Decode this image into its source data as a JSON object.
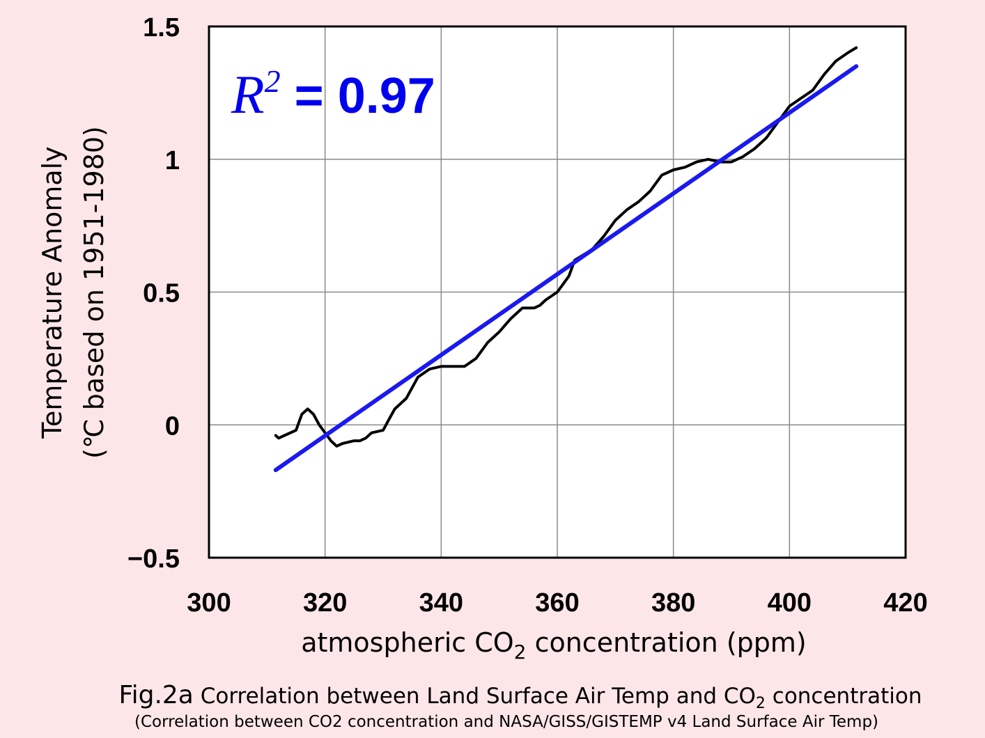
{
  "chart_data": {
    "type": "line",
    "xlabel_prefix": "atmospheric CO",
    "xlabel_sub": "2",
    "xlabel_suffix": " concentration (ppm)",
    "ylabel_line1": "Temperature Anomaly",
    "ylabel_line2": "(℃  based on 1951-1980)",
    "xlim": [
      300,
      420
    ],
    "ylim": [
      -0.5,
      1.5
    ],
    "xticks": [
      300,
      320,
      340,
      360,
      380,
      400,
      420
    ],
    "yticks": [
      -0.5,
      0,
      0.5,
      1,
      1.5
    ],
    "ytick_labels": [
      "−0.5",
      "0",
      "0.5",
      "1",
      "1.5"
    ],
    "grid": true,
    "annotation": {
      "r2_symbol": "R",
      "r2_exponent": "2",
      "r2_value": " = 0.97"
    },
    "series": [
      {
        "color": "#000000",
        "style": "line",
        "points": [
          [
            311.5,
            -0.04
          ],
          [
            312,
            -0.05
          ],
          [
            313,
            -0.04
          ],
          [
            315,
            -0.02
          ],
          [
            316,
            0.04
          ],
          [
            317,
            0.06
          ],
          [
            318,
            0.04
          ],
          [
            319,
            0.0
          ],
          [
            320,
            -0.03
          ],
          [
            321,
            -0.06
          ],
          [
            322,
            -0.08
          ],
          [
            323,
            -0.07
          ],
          [
            325,
            -0.06
          ],
          [
            326,
            -0.06
          ],
          [
            327,
            -0.05
          ],
          [
            328,
            -0.03
          ],
          [
            330,
            -0.02
          ],
          [
            331,
            0.02
          ],
          [
            332,
            0.06
          ],
          [
            334,
            0.1
          ],
          [
            336,
            0.18
          ],
          [
            338,
            0.21
          ],
          [
            340,
            0.22
          ],
          [
            342,
            0.22
          ],
          [
            344,
            0.22
          ],
          [
            346,
            0.25
          ],
          [
            348,
            0.31
          ],
          [
            350,
            0.35
          ],
          [
            352,
            0.4
          ],
          [
            354,
            0.44
          ],
          [
            356,
            0.44
          ],
          [
            357,
            0.45
          ],
          [
            358,
            0.47
          ],
          [
            360,
            0.5
          ],
          [
            362,
            0.56
          ],
          [
            363,
            0.62
          ],
          [
            366,
            0.66
          ],
          [
            368,
            0.71
          ],
          [
            370,
            0.77
          ],
          [
            372,
            0.81
          ],
          [
            374,
            0.84
          ],
          [
            376,
            0.88
          ],
          [
            378,
            0.94
          ],
          [
            380,
            0.96
          ],
          [
            382,
            0.97
          ],
          [
            384,
            0.99
          ],
          [
            386,
            1.0
          ],
          [
            388,
            0.99
          ],
          [
            390,
            0.99
          ],
          [
            392,
            1.01
          ],
          [
            394,
            1.04
          ],
          [
            396,
            1.08
          ],
          [
            398,
            1.14
          ],
          [
            400,
            1.2
          ],
          [
            402,
            1.23
          ],
          [
            404,
            1.26
          ],
          [
            406,
            1.32
          ],
          [
            408,
            1.37
          ],
          [
            410,
            1.4
          ],
          [
            411.5,
            1.42
          ]
        ]
      },
      {
        "color": "#1a1aee",
        "style": "line",
        "points": [
          [
            311.5,
            -0.17
          ],
          [
            411.5,
            1.35
          ]
        ]
      }
    ]
  },
  "caption": {
    "fig_label": "Fig.2a",
    "main_prefix": " Correlation between Land Surface Air Temp and CO",
    "main_sub": "2",
    "main_suffix": " concentration",
    "sub": "(Correlation between CO2 concentration and NASA/GISS/GISTEMP v4 Land Surface Air Temp)"
  }
}
